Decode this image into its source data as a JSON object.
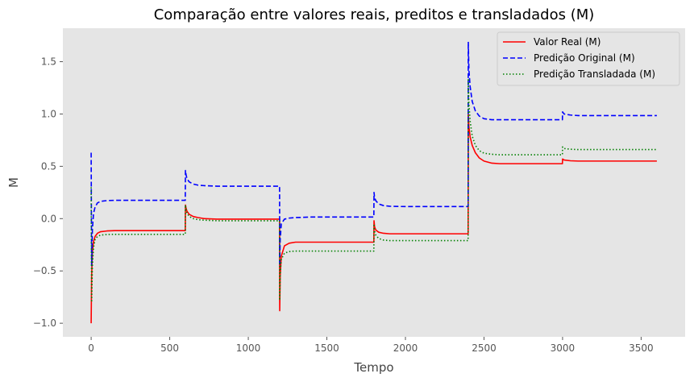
{
  "chart_data": {
    "type": "line",
    "title": "Comparação entre valores reais, preditos e transladados (M)",
    "xlabel": "Tempo",
    "ylabel": "M",
    "xlim": [
      -180,
      3780
    ],
    "ylim": [
      -1.13,
      1.82
    ],
    "xticks": [
      0,
      500,
      1000,
      1500,
      2000,
      2500,
      3000,
      3500
    ],
    "xtick_labels": [
      "0",
      "500",
      "1000",
      "1500",
      "2000",
      "2500",
      "3000",
      "3500"
    ],
    "yticks": [
      -1.0,
      -0.5,
      0.0,
      0.5,
      1.0,
      1.5
    ],
    "ytick_labels": [
      "−1.0",
      "−0.5",
      "0.0",
      "0.5",
      "1.0",
      "1.5"
    ],
    "grid": false,
    "legend_position": "top-right",
    "series": [
      {
        "name": "Valor Real (M)",
        "color": "#ff0000",
        "style": "solid",
        "x": [
          0,
          3,
          8,
          15,
          25,
          40,
          60,
          100,
          150,
          599,
          600,
          604,
          610,
          625,
          650,
          680,
          720,
          800,
          1199,
          1200,
          1203,
          1210,
          1230,
          1260,
          1300,
          1400,
          1799,
          1800,
          1804,
          1812,
          1830,
          1860,
          1900,
          2000,
          2399,
          2400,
          2404,
          2412,
          2425,
          2445,
          2470,
          2500,
          2550,
          2600,
          2700,
          2999,
          3000,
          3010,
          3050,
          3100,
          3600
        ],
        "y": [
          -1.0,
          -0.55,
          -0.32,
          -0.22,
          -0.17,
          -0.14,
          -0.125,
          -0.118,
          -0.115,
          -0.115,
          0.13,
          0.1,
          0.07,
          0.04,
          0.02,
          0.01,
          0.0,
          -0.005,
          -0.005,
          -0.88,
          -0.55,
          -0.36,
          -0.26,
          -0.235,
          -0.225,
          -0.225,
          -0.225,
          -0.02,
          -0.08,
          -0.11,
          -0.13,
          -0.14,
          -0.145,
          -0.145,
          -0.145,
          1.0,
          0.88,
          0.78,
          0.7,
          0.63,
          0.58,
          0.55,
          0.53,
          0.525,
          0.525,
          0.525,
          0.57,
          0.56,
          0.553,
          0.55,
          0.55
        ]
      },
      {
        "name": "Predição Original (M)",
        "color": "#0000ff",
        "style": "dashed",
        "x": [
          0,
          3,
          8,
          15,
          25,
          40,
          60,
          100,
          150,
          599,
          600,
          604,
          610,
          625,
          650,
          680,
          720,
          800,
          1199,
          1200,
          1203,
          1210,
          1230,
          1260,
          1300,
          1400,
          1799,
          1800,
          1804,
          1812,
          1830,
          1860,
          1900,
          2000,
          2399,
          2400,
          2404,
          2412,
          2425,
          2445,
          2470,
          2500,
          2550,
          2600,
          2700,
          2999,
          3000,
          3010,
          3050,
          3100,
          3600
        ],
        "y": [
          0.63,
          -0.45,
          -0.1,
          0.05,
          0.11,
          0.15,
          0.165,
          0.172,
          0.175,
          0.175,
          0.46,
          0.42,
          0.38,
          0.35,
          0.33,
          0.32,
          0.315,
          0.31,
          0.31,
          -0.45,
          -0.2,
          -0.05,
          -0.005,
          0.005,
          0.01,
          0.015,
          0.015,
          0.25,
          0.2,
          0.17,
          0.14,
          0.125,
          0.118,
          0.115,
          0.115,
          1.69,
          1.42,
          1.26,
          1.12,
          1.03,
          0.98,
          0.955,
          0.945,
          0.945,
          0.945,
          0.945,
          1.02,
          1.0,
          0.99,
          0.985,
          0.985
        ]
      },
      {
        "name": "Predição Transladada (M)",
        "color": "#008000",
        "style": "dotted",
        "x": [
          0,
          3,
          8,
          15,
          25,
          40,
          60,
          100,
          150,
          599,
          600,
          604,
          610,
          625,
          650,
          680,
          720,
          800,
          1199,
          1200,
          1203,
          1210,
          1230,
          1260,
          1300,
          1400,
          1799,
          1800,
          1804,
          1812,
          1830,
          1860,
          1900,
          2000,
          2399,
          2400,
          2404,
          2412,
          2425,
          2445,
          2470,
          2500,
          2550,
          2600,
          2700,
          2999,
          3000,
          3010,
          3050,
          3100,
          3600
        ],
        "y": [
          0.3,
          -0.8,
          -0.45,
          -0.28,
          -0.2,
          -0.17,
          -0.158,
          -0.152,
          -0.15,
          -0.15,
          0.13,
          0.09,
          0.05,
          0.02,
          0.0,
          -0.01,
          -0.015,
          -0.02,
          -0.02,
          -0.78,
          -0.53,
          -0.39,
          -0.33,
          -0.315,
          -0.31,
          -0.31,
          -0.31,
          -0.05,
          -0.12,
          -0.16,
          -0.19,
          -0.205,
          -0.21,
          -0.21,
          -0.21,
          1.34,
          1.1,
          0.93,
          0.79,
          0.7,
          0.65,
          0.625,
          0.615,
          0.61,
          0.61,
          0.61,
          0.685,
          0.67,
          0.663,
          0.66,
          0.66
        ]
      }
    ]
  }
}
